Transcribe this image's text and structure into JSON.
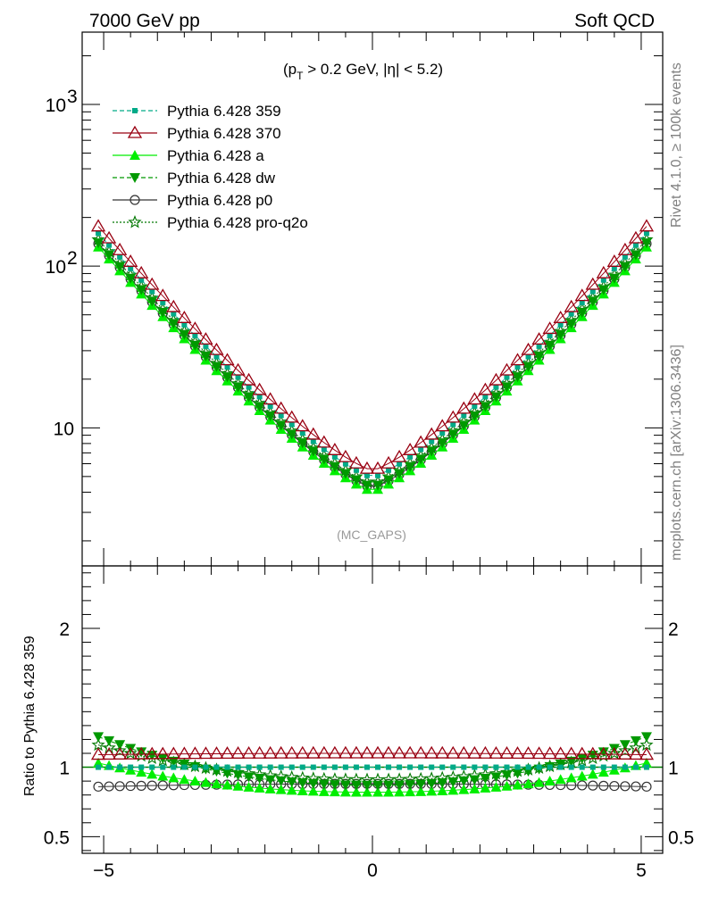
{
  "header": {
    "left": "7000 GeV pp",
    "right": "Soft QCD"
  },
  "side_labels": {
    "rivet": "Rivet 4.1.0, ≥ 100k events",
    "mcplots": "mcplots.cern.ch [arXiv:1306.3436]"
  },
  "cut_label": {
    "prefix": "(p",
    "sub": "T",
    "suffix": " > 0.2 GeV, |η| < 5.2)"
  },
  "analysis_label": "(MC_GAPS)",
  "colors": {
    "p359": "#00aa88",
    "p370": "#990011",
    "a": "#00ee00",
    "dw": "#009900",
    "p0": "#333333",
    "proq2o": "#007700",
    "ref_line": "#008000"
  },
  "chart_data": [
    {
      "type": "line",
      "panel": "main",
      "yscale": "log",
      "ylim": [
        1.4,
        2800
      ],
      "xlim": [
        -5.4,
        5.4
      ],
      "yticks": [
        {
          "value": 10,
          "label": "10"
        },
        {
          "value": 100,
          "label": "10",
          "exp": "2"
        },
        {
          "value": 1000,
          "label": "10",
          "exp": "3"
        }
      ],
      "legend": [
        {
          "key": "p359",
          "label": "Pythia 6.428 359",
          "marker": "square-small",
          "dash": "5,3"
        },
        {
          "key": "p370",
          "label": "Pythia 6.428 370",
          "marker": "triangle-open",
          "dash": ""
        },
        {
          "key": "a",
          "label": "Pythia 6.428 a",
          "marker": "triangle",
          "dash": ""
        },
        {
          "key": "dw",
          "label": "Pythia 6.428 dw",
          "marker": "triangle-down",
          "dash": "5,3"
        },
        {
          "key": "p0",
          "label": "Pythia 6.428 p0",
          "marker": "circle-open",
          "dash": ""
        },
        {
          "key": "proq2o",
          "label": "Pythia 6.428 pro-q2o",
          "marker": "star-open",
          "dash": "2,2"
        }
      ],
      "x_range": {
        "start": -5.1,
        "end": 5.1,
        "step": 0.2
      },
      "ref_curve": {
        "center": 4.95,
        "edge": 160,
        "shape_power": 1.25,
        "note": "Pythia 6.428 359 values per x: y = center * (edge/center)^((|x|/5.1)^shape_power)"
      },
      "series_scale": {
        "p359": 1.0,
        "p370": 1.1,
        "a": 0.82,
        "dw": 0.87,
        "p0": 0.86,
        "proq2o": 0.91
      }
    },
    {
      "type": "line",
      "panel": "ratio",
      "ylabel": "Ratio to Pythia 6.428 359",
      "ylim": [
        0.38,
        2.45
      ],
      "xlim": [
        -5.4,
        5.4
      ],
      "xticks": [
        {
          "value": -5,
          "label": "−5"
        },
        {
          "value": 0,
          "label": "0"
        },
        {
          "value": 5,
          "label": "5"
        }
      ],
      "yticks": [
        {
          "value": 0.5,
          "label": "0.5"
        },
        {
          "value": 1,
          "label": "1"
        },
        {
          "value": 2,
          "label": "2"
        }
      ],
      "series_ratio_model": {
        "p359": {
          "edge": 1.0,
          "center": 1.0
        },
        "p370": {
          "edge": 1.09,
          "center": 1.1
        },
        "a": {
          "edge": 1.03,
          "center": 0.82
        },
        "dw": {
          "edge": 1.22,
          "center": 0.87
        },
        "p0": {
          "edge": 0.86,
          "center": 0.88
        },
        "proq2o": {
          "edge": 1.16,
          "center": 0.91
        }
      }
    }
  ]
}
